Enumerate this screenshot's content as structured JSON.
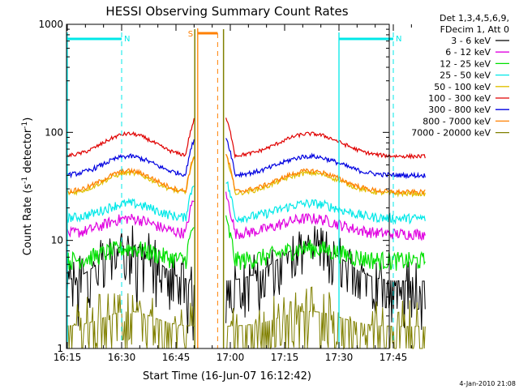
{
  "chart_data": {
    "type": "line",
    "title": "HESSI Observing Summary Count Rates",
    "xlabel": "Start Time (16-Jun-07 16:12:42)",
    "ylabel_main": "Count Rate (s",
    "ylabel_sup1": "-1",
    "ylabel_mid": " detector",
    "ylabel_sup2": "-1",
    "ylabel_end": ")",
    "y_scale": "log",
    "ylim": [
      1,
      1000
    ],
    "xlim_minutes": [
      -0.3,
      99
    ],
    "x_ticks": [
      {
        "m": 0,
        "label": "16:15"
      },
      {
        "m": 15,
        "label": "16:30"
      },
      {
        "m": 30,
        "label": "16:45"
      },
      {
        "m": 45,
        "label": "17:00"
      },
      {
        "m": 60,
        "label": "17:15"
      },
      {
        "m": 75,
        "label": "17:30"
      },
      {
        "m": 90,
        "label": "17:45"
      }
    ],
    "y_ticks": [
      {
        "v": 1,
        "label": "1"
      },
      {
        "v": 10,
        "label": "10"
      },
      {
        "v": 100,
        "label": "100"
      },
      {
        "v": 1000,
        "label": "1000"
      }
    ],
    "legend_header": [
      "Det 1,3,4,5,6,9,",
      "FDecim 1, Att 0"
    ],
    "series": [
      {
        "name": "3 - 6 keV",
        "color": "#000000",
        "base": 4.2,
        "peak": 9,
        "noise": 0.45
      },
      {
        "name": "6 - 12 keV",
        "color": "#e000e0",
        "base": 11.5,
        "peak": 16,
        "noise": 0.12
      },
      {
        "name": "12 - 25 keV",
        "color": "#00e000",
        "base": 6.5,
        "peak": 8.5,
        "noise": 0.2
      },
      {
        "name": "25 - 50 keV",
        "color": "#00e8e8",
        "base": 16,
        "peak": 22,
        "noise": 0.1
      },
      {
        "name": "50 - 100 keV",
        "color": "#e0c000",
        "base": 27,
        "peak": 42,
        "noise": 0.05
      },
      {
        "name": "100 - 300 keV",
        "color": "#e00000",
        "base": 60,
        "peak": 97,
        "noise": 0.04
      },
      {
        "name": "300 - 800 keV",
        "color": "#0000e0",
        "base": 40,
        "peak": 60,
        "noise": 0.05
      },
      {
        "name": "800 - 7000 keV",
        "color": "#ff8000",
        "base": 28,
        "peak": 44,
        "noise": 0.05
      },
      {
        "name": "7000 - 20000 keV",
        "color": "#808000",
        "base": 1.6,
        "peak": 2.2,
        "noise": 0.6
      }
    ],
    "data_gap_minutes": [
      35.2,
      43.8
    ],
    "night_markers": [
      {
        "label": "N",
        "color": "#00e8e8",
        "start_m": -0.3,
        "end_m": 15,
        "dashed_at": 15
      },
      {
        "label": "N",
        "color": "#00e8e8",
        "start_m": 75,
        "end_m": 90,
        "dashed_at": 90
      }
    ],
    "saa_marker": {
      "label": "S",
      "color": "#ff8000",
      "start_m": 36,
      "end_m": 41.5,
      "dashed_at": 41.5
    },
    "timestamp": "4-Jan-2010 21:08"
  }
}
